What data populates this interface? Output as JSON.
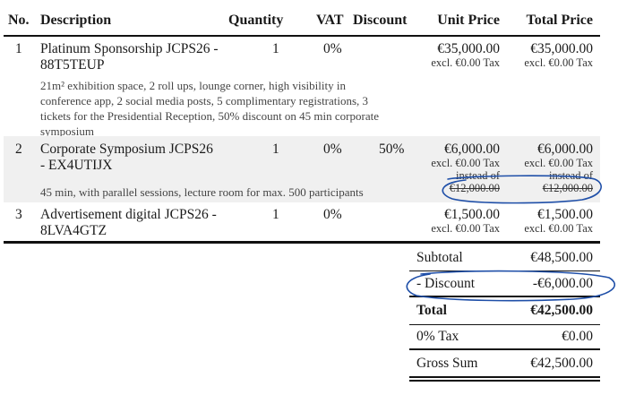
{
  "headers": {
    "no": "No.",
    "description": "Description",
    "quantity": "Quantity",
    "vat": "VAT",
    "discount": "Discount",
    "unit_price": "Unit Price",
    "total_price": "Total Price"
  },
  "rows": [
    {
      "no": "1",
      "title_line1": "Platinum Sponsorship JCPS26 -",
      "title_line2": "88T5TEUP",
      "quantity": "1",
      "vat": "0%",
      "discount": "",
      "unit_price": "€35,000.00",
      "unit_tax": "excl. €0.00 Tax",
      "total_price": "€35,000.00",
      "total_tax": "excl. €0.00 Tax",
      "details": [
        "21m² exhibition space, 2 roll ups, lounge corner, high visibility in",
        "conference app, 2 social media posts, 5 complimentary registrations, 3",
        "tickets for the Presidential Reception, 50% discount on 45 min corporate",
        "symposium"
      ]
    },
    {
      "no": "2",
      "title_line1": "Corporate Symposium JCPS26",
      "title_line2": "- EX4UTIJX",
      "quantity": "1",
      "vat": "0%",
      "discount": "50%",
      "unit_price": "€6,000.00",
      "unit_tax": "excl. €0.00 Tax",
      "unit_instead": "instead of",
      "unit_old": "€12,000.00",
      "total_price": "€6,000.00",
      "total_tax": "excl. €0.00 Tax",
      "total_instead": "instead of",
      "total_old": "€12,000.00",
      "details": [
        "45 min, with parallel sessions, lecture room for max. 500 participants"
      ]
    },
    {
      "no": "3",
      "title_line1": "Advertisement digital JCPS26 -",
      "title_line2": "8LVA4GTZ",
      "quantity": "1",
      "vat": "0%",
      "discount": "",
      "unit_price": "€1,500.00",
      "unit_tax": "excl. €0.00 Tax",
      "total_price": "€1,500.00",
      "total_tax": "excl. €0.00 Tax",
      "details": []
    }
  ],
  "totals": {
    "subtotal_label": "Subtotal",
    "subtotal_value": "€48,500.00",
    "discount_label": "- Discount",
    "discount_value": "-€6,000.00",
    "total_label": "Total",
    "total_value": "€42,500.00",
    "tax_label": "0% Tax",
    "tax_value": "€0.00",
    "gross_label": "Gross Sum",
    "gross_value": "€42,500.00"
  },
  "colors": {
    "annotation_ink": "#1f4fa8",
    "row_highlight": "#f0f0f0"
  }
}
